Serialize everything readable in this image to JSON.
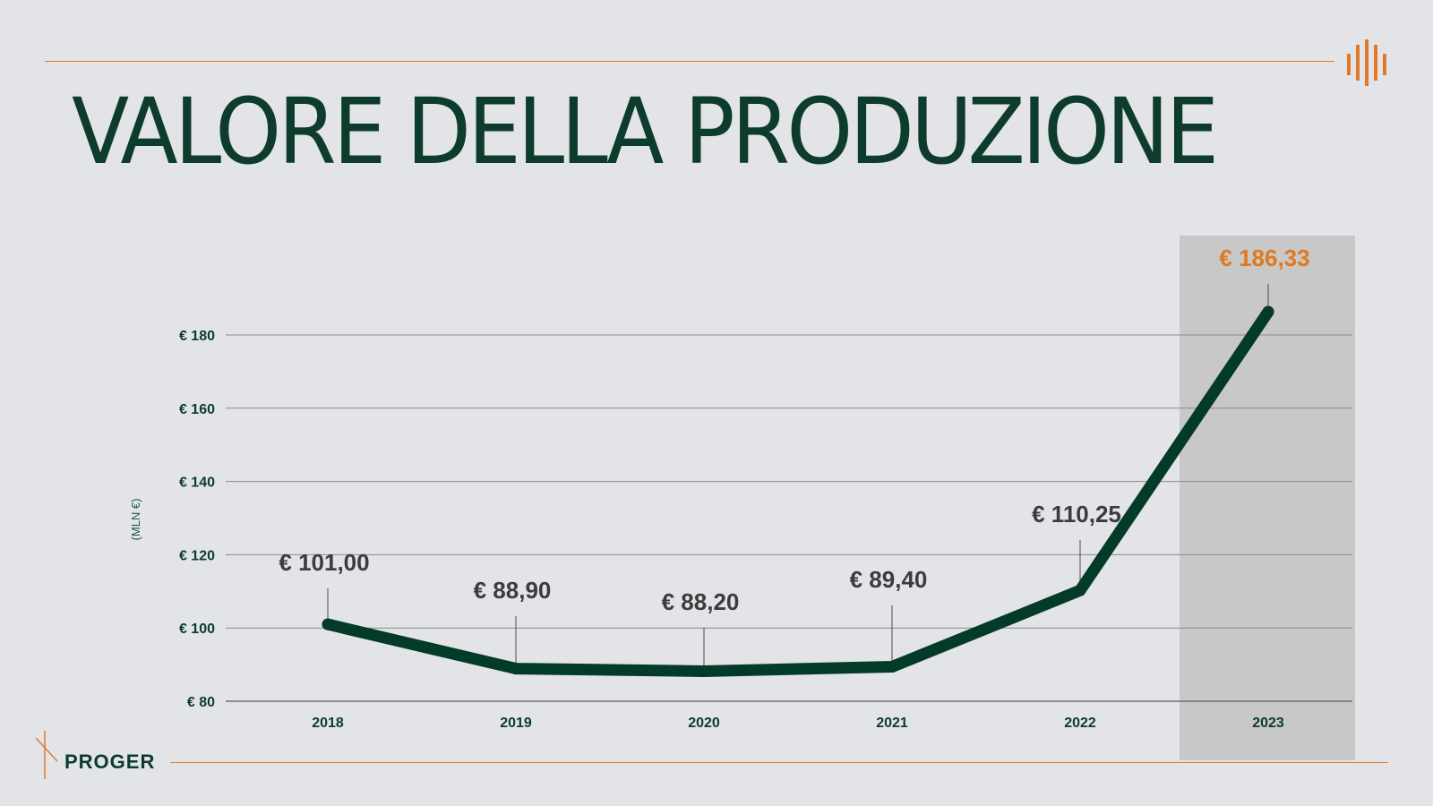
{
  "page": {
    "title": "VALORE DELLA PRODUZIONE",
    "brand": "PROGER"
  },
  "colors": {
    "background": "#e3e4e8",
    "line": "#033a28",
    "highlight_band": "#c8c8c8",
    "highlight_text": "#e07a1f",
    "accent": "#e07a2a",
    "title": "#0d3b2c"
  },
  "icons": {
    "brand_mark": "vertical-bars-logo",
    "footer_mark": "slash-logo"
  },
  "chart_data": {
    "type": "line",
    "categories": [
      "2018",
      "2019",
      "2020",
      "2021",
      "2022",
      "2023"
    ],
    "values": [
      101.0,
      88.9,
      88.2,
      89.4,
      110.25,
      186.33
    ],
    "value_labels": [
      "€ 101,00",
      "€ 88,90",
      "€ 88,20",
      "€ 89,40",
      "€ 110,25",
      "€ 186,33"
    ],
    "highlight_category": "2023",
    "ylabel": "(MLN €)",
    "xlabel": "",
    "ylim": [
      80,
      180
    ],
    "yticks": [
      80,
      100,
      120,
      140,
      160,
      180
    ],
    "ytick_labels": [
      "€ 80",
      "€ 100",
      "€ 120",
      "€ 140",
      "€ 160",
      "€ 180"
    ],
    "grid": true,
    "legend": "none"
  }
}
